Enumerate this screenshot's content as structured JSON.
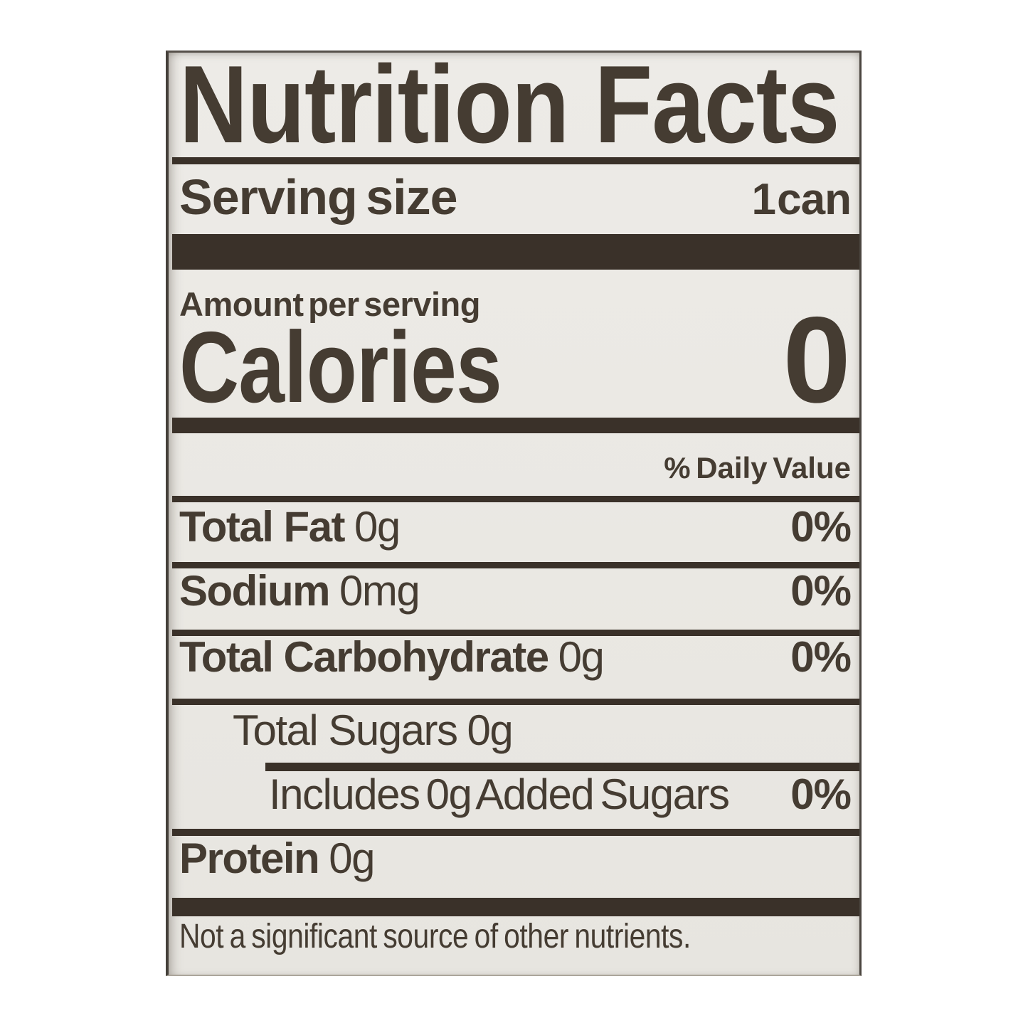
{
  "label": {
    "title": "Nutrition Facts",
    "serving": {
      "label": "Serving size",
      "value": "1 can"
    },
    "amount_per_serving": "Amount per serving",
    "calories": {
      "label": "Calories",
      "value": "0"
    },
    "daily_value_header": "% Daily Value",
    "nutrients": [
      {
        "name": "Total Fat",
        "amount": "0g",
        "daily_value": "0%"
      },
      {
        "name": "Sodium",
        "amount": "0mg",
        "daily_value": "0%"
      },
      {
        "name": "Total Carbohydrate",
        "amount": "0g",
        "daily_value": "0%"
      },
      {
        "name": "Total Sugars",
        "amount": "0g",
        "daily_value": ""
      },
      {
        "name": "Includes 0g Added Sugars",
        "amount": "",
        "daily_value": "0%"
      },
      {
        "name": "Protein",
        "amount": "0g",
        "daily_value": ""
      }
    ],
    "footnote": "Not a significant source of other nutrients."
  },
  "colors": {
    "ink": "#453c32",
    "bar": "#3a3129",
    "label_bg": "#eae8e3",
    "page_bg": "#ffffff"
  }
}
